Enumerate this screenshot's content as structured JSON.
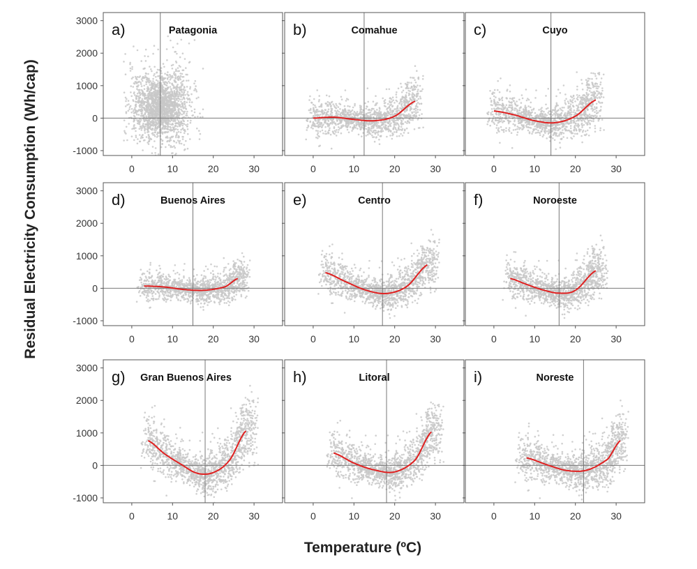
{
  "figure": {
    "ylabel": "Residual Electricity Consumption (Wh/cap)",
    "xlabel": "Temperature (ºC)"
  },
  "style": {
    "point_color": "#c8c8c8",
    "curve_color": "#e02020",
    "axis_color": "#555555",
    "reference_line_color": "#777777"
  },
  "chart_data": [
    {
      "type": "scatter",
      "panel": "a)",
      "title": "Patagonia",
      "x_ticks": [
        0,
        10,
        20,
        30
      ],
      "y_ticks": [
        3000,
        2000,
        1000,
        0,
        -1000
      ],
      "xlim": [
        -7,
        37
      ],
      "ylim": [
        -1150,
        3250
      ],
      "vline_x": 7,
      "hline_y": 0,
      "point_cloud": {
        "x_range": [
          -1,
          17
        ],
        "center_x": 7,
        "spread": [
          800,
          1400
        ],
        "count": 2000,
        "density_shape": "wide"
      },
      "fit_curve": null
    },
    {
      "type": "scatter",
      "panel": "b)",
      "title": "Comahue",
      "x_ticks": [
        0,
        10,
        20,
        30
      ],
      "y_ticks": [
        3000,
        2000,
        1000,
        0,
        -1000
      ],
      "xlim": [
        -7,
        37
      ],
      "ylim": [
        -1150,
        3250
      ],
      "vline_x": 12.5,
      "hline_y": 0,
      "point_cloud": {
        "x_range": [
          -1,
          26
        ],
        "spread": [
          350,
          700
        ],
        "count": 1300
      },
      "fit_curve": {
        "x": [
          0,
          5,
          10,
          15,
          20,
          25
        ],
        "y": [
          0,
          30,
          -40,
          -80,
          60,
          520
        ]
      }
    },
    {
      "type": "scatter",
      "panel": "c)",
      "title": "Cuyo",
      "x_ticks": [
        0,
        10,
        20,
        30
      ],
      "y_ticks": [
        3000,
        2000,
        1000,
        0,
        -1000
      ],
      "xlim": [
        -7,
        37
      ],
      "ylim": [
        -1150,
        3250
      ],
      "vline_x": 14,
      "hline_y": 0,
      "point_cloud": {
        "x_range": [
          -1,
          26
        ],
        "spread": [
          350,
          800
        ],
        "count": 1300
      },
      "fit_curve": {
        "x": [
          0,
          5,
          10,
          15,
          20,
          25
        ],
        "y": [
          220,
          100,
          -80,
          -140,
          60,
          560
        ]
      }
    },
    {
      "type": "scatter",
      "panel": "d)",
      "title": "Buenos Aires",
      "x_ticks": [
        0,
        10,
        20,
        30
      ],
      "y_ticks": [
        3000,
        2000,
        1000,
        0,
        -1000
      ],
      "xlim": [
        -7,
        37
      ],
      "ylim": [
        -1150,
        3250
      ],
      "vline_x": 15,
      "hline_y": 0,
      "point_cloud": {
        "x_range": [
          2,
          28
        ],
        "spread": [
          300,
          500
        ],
        "count": 1300
      },
      "fit_curve": {
        "x": [
          3,
          8,
          13,
          18,
          23,
          26
        ],
        "y": [
          70,
          40,
          -40,
          -60,
          50,
          300
        ]
      }
    },
    {
      "type": "scatter",
      "panel": "e)",
      "title": "Centro",
      "x_ticks": [
        0,
        10,
        20,
        30
      ],
      "y_ticks": [
        3000,
        2000,
        1000,
        0,
        -1000
      ],
      "xlim": [
        -7,
        37
      ],
      "ylim": [
        -1150,
        3250
      ],
      "vline_x": 17,
      "hline_y": 0,
      "point_cloud": {
        "x_range": [
          2,
          30
        ],
        "spread": [
          350,
          700
        ],
        "count": 1400
      },
      "fit_curve": {
        "x": [
          3,
          8,
          13,
          18,
          23,
          28
        ],
        "y": [
          480,
          200,
          -60,
          -160,
          60,
          720
        ]
      }
    },
    {
      "type": "scatter",
      "panel": "f)",
      "title": "Noroeste",
      "x_ticks": [
        0,
        10,
        20,
        30
      ],
      "y_ticks": [
        3000,
        2000,
        1000,
        0,
        -1000
      ],
      "xlim": [
        -7,
        37
      ],
      "ylim": [
        -1150,
        3250
      ],
      "vline_x": 16,
      "hline_y": 0,
      "point_cloud": {
        "x_range": [
          3,
          27
        ],
        "spread": [
          350,
          700
        ],
        "count": 1300
      },
      "fit_curve": {
        "x": [
          4,
          8,
          12,
          16,
          20,
          25
        ],
        "y": [
          300,
          120,
          -50,
          -150,
          -60,
          540
        ]
      }
    },
    {
      "type": "scatter",
      "panel": "g)",
      "title": "Gran Buenos Aires",
      "x_ticks": [
        0,
        10,
        20,
        30
      ],
      "y_ticks": [
        3000,
        2000,
        1000,
        0,
        -1000
      ],
      "xlim": [
        -7,
        37
      ],
      "ylim": [
        -1150,
        3250
      ],
      "vline_x": 18,
      "hline_y": 0,
      "point_cloud": {
        "x_range": [
          3,
          30
        ],
        "spread": [
          450,
          900
        ],
        "count": 1500
      },
      "fit_curve": {
        "x": [
          4,
          8,
          12,
          16,
          20,
          24,
          28
        ],
        "y": [
          760,
          360,
          40,
          -240,
          -220,
          160,
          1060
        ]
      }
    },
    {
      "type": "scatter",
      "panel": "h)",
      "title": "Litoral",
      "x_ticks": [
        0,
        10,
        20,
        30
      ],
      "y_ticks": [
        3000,
        2000,
        1000,
        0,
        -1000
      ],
      "xlim": [
        -7,
        37
      ],
      "ylim": [
        -1150,
        3250
      ],
      "vline_x": 18,
      "hline_y": 0,
      "point_cloud": {
        "x_range": [
          4,
          31
        ],
        "spread": [
          400,
          800
        ],
        "count": 1400
      },
      "fit_curve": {
        "x": [
          5,
          10,
          15,
          20,
          25,
          29
        ],
        "y": [
          380,
          70,
          -140,
          -200,
          160,
          1030
        ]
      }
    },
    {
      "type": "scatter",
      "panel": "i)",
      "title": "Noreste",
      "x_ticks": [
        0,
        10,
        20,
        30
      ],
      "y_ticks": [
        3000,
        2000,
        1000,
        0,
        -1000
      ],
      "xlim": [
        -7,
        37
      ],
      "ylim": [
        -1150,
        3250
      ],
      "vline_x": 22,
      "hline_y": 0,
      "point_cloud": {
        "x_range": [
          6,
          32
        ],
        "spread": [
          400,
          800
        ],
        "count": 1400
      },
      "fit_curve": {
        "x": [
          8,
          13,
          18,
          23,
          28,
          31
        ],
        "y": [
          230,
          20,
          -160,
          -140,
          200,
          760
        ]
      }
    }
  ]
}
